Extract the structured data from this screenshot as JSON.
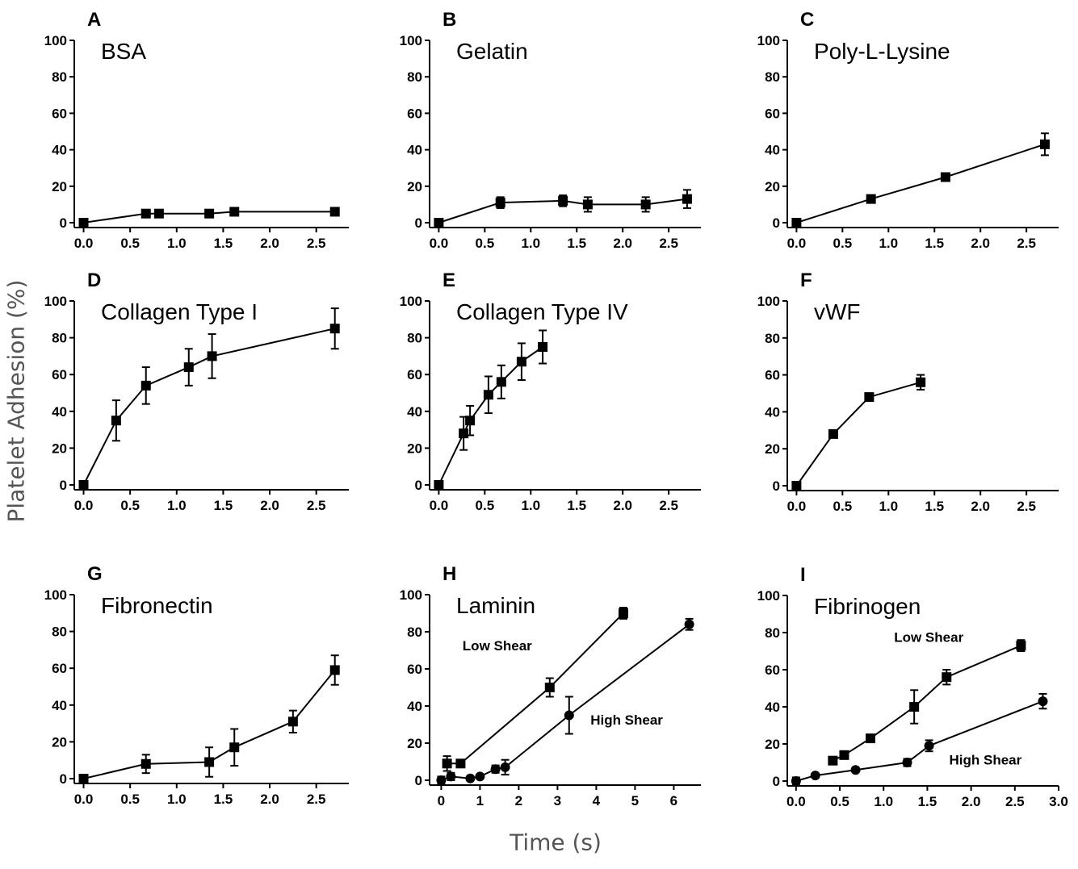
{
  "figure": {
    "ylabel": "Platelet Adhesion (%)",
    "xlabel": "Time (s)",
    "line_color": "#000000",
    "background": "#ffffff"
  },
  "chart_data": [
    {
      "type": "scatter",
      "letter": "A",
      "title": "BSA",
      "xlabel": "",
      "ylabel": "",
      "xlim": [
        -0.1,
        2.85
      ],
      "ylim": [
        0,
        100
      ],
      "xticks": [
        "0.0",
        "0.5",
        "1.0",
        "1.5",
        "2.0",
        "2.5"
      ],
      "xtick_values": [
        0,
        0.5,
        1,
        1.5,
        2,
        2.5
      ],
      "yticks": [
        "0",
        "20",
        "40",
        "60",
        "80",
        "100"
      ],
      "ytick_values": [
        0,
        20,
        40,
        60,
        80,
        100
      ],
      "series": [
        {
          "marker": "square",
          "x": [
            0,
            0.67,
            0.81,
            1.35,
            1.62,
            2.7
          ],
          "y": [
            0,
            5,
            5,
            5,
            6,
            6
          ],
          "err": [
            0,
            2,
            2,
            2,
            2,
            2
          ]
        }
      ],
      "annotations": []
    },
    {
      "type": "scatter",
      "letter": "B",
      "title": "Gelatin",
      "xlabel": "",
      "ylabel": "",
      "xlim": [
        -0.1,
        2.85
      ],
      "ylim": [
        0,
        100
      ],
      "xticks": [
        "0.0",
        "0.5",
        "1.0",
        "1.5",
        "2.0",
        "2.5"
      ],
      "xtick_values": [
        0,
        0.5,
        1,
        1.5,
        2,
        2.5
      ],
      "yticks": [
        "0",
        "20",
        "40",
        "60",
        "80",
        "100"
      ],
      "ytick_values": [
        0,
        20,
        40,
        60,
        80,
        100
      ],
      "series": [
        {
          "marker": "square",
          "x": [
            0,
            0.67,
            1.35,
            1.62,
            2.25,
            2.7
          ],
          "y": [
            0,
            11,
            12,
            10,
            10,
            13
          ],
          "err": [
            0,
            3,
            3,
            4,
            4,
            5
          ]
        }
      ],
      "annotations": []
    },
    {
      "type": "scatter",
      "letter": "C",
      "title": "Poly-L-Lysine",
      "xlabel": "",
      "ylabel": "",
      "xlim": [
        -0.1,
        2.85
      ],
      "ylim": [
        0,
        100
      ],
      "xticks": [
        "0.0",
        "0.5",
        "1.0",
        "1.5",
        "2.0",
        "2.5"
      ],
      "xtick_values": [
        0,
        0.5,
        1,
        1.5,
        2,
        2.5
      ],
      "yticks": [
        "0",
        "20",
        "40",
        "60",
        "80",
        "100"
      ],
      "ytick_values": [
        0,
        20,
        40,
        60,
        80,
        100
      ],
      "series": [
        {
          "marker": "square",
          "x": [
            0,
            0.81,
            1.62,
            2.7
          ],
          "y": [
            0,
            13,
            25,
            43
          ],
          "err": [
            0,
            2,
            2,
            6
          ]
        }
      ],
      "annotations": []
    },
    {
      "type": "scatter",
      "letter": "D",
      "title": "Collagen Type I",
      "xlabel": "",
      "ylabel": "",
      "xlim": [
        -0.1,
        2.85
      ],
      "ylim": [
        0,
        100
      ],
      "xticks": [
        "0.0",
        "0.5",
        "1.0",
        "1.5",
        "2.0",
        "2.5"
      ],
      "xtick_values": [
        0,
        0.5,
        1,
        1.5,
        2,
        2.5
      ],
      "yticks": [
        "0",
        "20",
        "40",
        "60",
        "80",
        "100"
      ],
      "ytick_values": [
        0,
        20,
        40,
        60,
        80,
        100
      ],
      "series": [
        {
          "marker": "square",
          "x": [
            0,
            0.35,
            0.67,
            1.13,
            1.38,
            2.7
          ],
          "y": [
            0,
            35,
            54,
            64,
            70,
            85
          ],
          "err": [
            0,
            11,
            10,
            10,
            12,
            11
          ]
        }
      ],
      "annotations": []
    },
    {
      "type": "scatter",
      "letter": "E",
      "title": "Collagen Type IV",
      "xlabel": "",
      "ylabel": "",
      "xlim": [
        -0.1,
        2.85
      ],
      "ylim": [
        0,
        100
      ],
      "xticks": [
        "0.0",
        "0.5",
        "1.0",
        "1.5",
        "2.0",
        "2.5"
      ],
      "xtick_values": [
        0,
        0.5,
        1,
        1.5,
        2,
        2.5
      ],
      "yticks": [
        "0",
        "20",
        "40",
        "60",
        "80",
        "100"
      ],
      "ytick_values": [
        0,
        20,
        40,
        60,
        80,
        100
      ],
      "series": [
        {
          "marker": "square",
          "x": [
            0,
            0.27,
            0.34,
            0.54,
            0.68,
            0.9,
            1.13
          ],
          "y": [
            0,
            28,
            35,
            49,
            56,
            67,
            75
          ],
          "err": [
            0,
            9,
            8,
            10,
            9,
            10,
            9
          ]
        }
      ],
      "annotations": []
    },
    {
      "type": "scatter",
      "letter": "F",
      "title": "vWF",
      "xlabel": "",
      "ylabel": "",
      "xlim": [
        -0.1,
        2.85
      ],
      "ylim": [
        0,
        100
      ],
      "xticks": [
        "0.0",
        "0.5",
        "1.0",
        "1.5",
        "2.0",
        "2.5"
      ],
      "xtick_values": [
        0,
        0.5,
        1,
        1.5,
        2,
        2.5
      ],
      "yticks": [
        "0",
        "20",
        "40",
        "60",
        "80",
        "100"
      ],
      "ytick_values": [
        0,
        20,
        40,
        60,
        80,
        100
      ],
      "series": [
        {
          "marker": "square",
          "x": [
            0,
            0.4,
            0.79,
            1.35
          ],
          "y": [
            0,
            28,
            48,
            56
          ],
          "err": [
            0,
            2,
            2,
            4
          ]
        }
      ],
      "annotations": []
    },
    {
      "type": "scatter",
      "letter": "G",
      "title": "Fibronectin",
      "xlabel": "",
      "ylabel": "",
      "xlim": [
        -0.1,
        2.85
      ],
      "ylim": [
        0,
        100
      ],
      "xticks": [
        "0.0",
        "0.5",
        "1.0",
        "1.5",
        "2.0",
        "2.5"
      ],
      "xtick_values": [
        0,
        0.5,
        1,
        1.5,
        2,
        2.5
      ],
      "yticks": [
        "0",
        "20",
        "40",
        "60",
        "80",
        "100"
      ],
      "ytick_values": [
        0,
        20,
        40,
        60,
        80,
        100
      ],
      "series": [
        {
          "marker": "square",
          "x": [
            0,
            0.67,
            1.35,
            1.62,
            2.25,
            2.7
          ],
          "y": [
            0,
            8,
            9,
            17,
            31,
            59
          ],
          "err": [
            0,
            5,
            8,
            10,
            6,
            8
          ]
        }
      ],
      "annotations": []
    },
    {
      "type": "scatter",
      "letter": "H",
      "title": "Laminin",
      "xlabel": "",
      "ylabel": "",
      "xlim": [
        -0.3,
        6.7
      ],
      "ylim": [
        0,
        100
      ],
      "xticks": [
        "0",
        "1",
        "2",
        "3",
        "4",
        "5",
        "6"
      ],
      "xtick_values": [
        0,
        1,
        2,
        3,
        4,
        5,
        6
      ],
      "yticks": [
        "0",
        "20",
        "40",
        "60",
        "80",
        "100"
      ],
      "ytick_values": [
        0,
        20,
        40,
        60,
        80,
        100
      ],
      "series": [
        {
          "marker": "square",
          "x": [
            0.15,
            0.5,
            2.8,
            4.7
          ],
          "y": [
            9,
            9,
            50,
            90
          ],
          "err": [
            4,
            2,
            5,
            3
          ]
        },
        {
          "marker": "circle",
          "x": [
            0,
            0.25,
            0.75,
            1,
            1.4,
            1.65,
            3.3,
            6.4
          ],
          "y": [
            0,
            2,
            1,
            2,
            6,
            7,
            35,
            84
          ],
          "err": [
            2,
            2,
            1,
            1,
            2,
            4,
            10,
            3
          ]
        }
      ],
      "annotations": [
        {
          "text": "Low Shear",
          "x": 0.55,
          "y": 70
        },
        {
          "text": "High Shear",
          "x": 3.85,
          "y": 30
        }
      ]
    },
    {
      "type": "scatter",
      "letter": "I",
      "title": "Fibrinogen",
      "xlabel": "",
      "ylabel": "",
      "xlim": [
        -0.1,
        3.0
      ],
      "ylim": [
        0,
        100
      ],
      "xticks": [
        "0.0",
        "0.5",
        "1.0",
        "1.5",
        "2.0",
        "2.5",
        "3.0"
      ],
      "xtick_values": [
        0,
        0.5,
        1,
        1.5,
        2,
        2.5,
        3
      ],
      "yticks": [
        "0",
        "20",
        "40",
        "60",
        "80",
        "100"
      ],
      "ytick_values": [
        0,
        20,
        40,
        60,
        80,
        100
      ],
      "series": [
        {
          "marker": "square",
          "x": [
            0.42,
            0.55,
            0.85,
            1.35,
            1.72,
            2.57
          ],
          "y": [
            11,
            14,
            23,
            40,
            56,
            73
          ],
          "err": [
            2,
            2,
            2,
            9,
            4,
            3
          ]
        },
        {
          "marker": "circle",
          "x": [
            0,
            0.22,
            0.68,
            1.27,
            1.52,
            2.82
          ],
          "y": [
            0,
            3,
            6,
            10,
            19,
            43
          ],
          "err": [
            2,
            1,
            1,
            2,
            3,
            4
          ]
        }
      ],
      "annotations": [
        {
          "text": "Low Shear",
          "x": 1.12,
          "y": 75
        },
        {
          "text": "High Shear",
          "x": 1.75,
          "y": 9
        }
      ]
    }
  ]
}
